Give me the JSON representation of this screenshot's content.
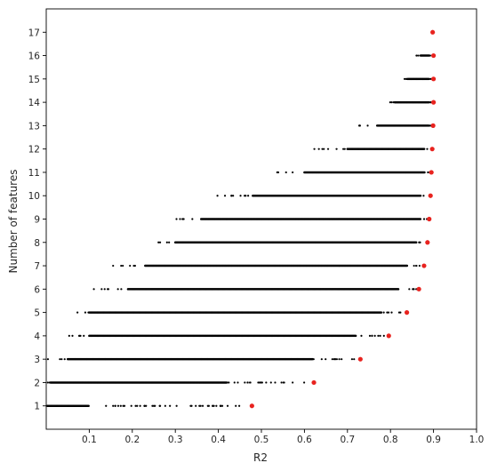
{
  "chart_data": {
    "type": "scatter",
    "title": "",
    "xlabel": "R2",
    "ylabel": "Number of features",
    "xlim": [
      0.0,
      1.0
    ],
    "ylim": [
      0.0,
      18.0
    ],
    "x_ticks": [
      0.1,
      0.2,
      0.3,
      0.4,
      0.5,
      0.6,
      0.7,
      0.8,
      0.9,
      1.0
    ],
    "y_ticks": [
      1,
      2,
      3,
      4,
      5,
      6,
      7,
      8,
      9,
      10,
      11,
      12,
      13,
      14,
      15,
      16,
      17
    ],
    "grid": false,
    "series": [
      {
        "color": "#000000",
        "marker_size": "small",
        "description_of_density": "dense horizontal bands of points at every integer feature count; band spans listed as [y, x_min, x_dense_start, x_dense_end, x_max]",
        "bands": [
          [
            1,
            0.003,
            0.003,
            0.1,
            0.45
          ],
          [
            2,
            0.003,
            0.01,
            0.42,
            0.61
          ],
          [
            3,
            0.003,
            0.05,
            0.62,
            0.72
          ],
          [
            4,
            0.035,
            0.1,
            0.72,
            0.785
          ],
          [
            5,
            0.07,
            0.1,
            0.78,
            0.83
          ],
          [
            6,
            0.11,
            0.19,
            0.82,
            0.86
          ],
          [
            7,
            0.155,
            0.23,
            0.84,
            0.87
          ],
          [
            8,
            0.255,
            0.3,
            0.86,
            0.88
          ],
          [
            9,
            0.295,
            0.36,
            0.87,
            0.885
          ],
          [
            10,
            0.385,
            0.48,
            0.87,
            0.89
          ],
          [
            11,
            0.53,
            0.6,
            0.88,
            0.89
          ],
          [
            12,
            0.615,
            0.7,
            0.88,
            0.895
          ],
          [
            13,
            0.715,
            0.77,
            0.89,
            0.895
          ],
          [
            14,
            0.795,
            0.81,
            0.89,
            0.895
          ],
          [
            15,
            0.83,
            0.84,
            0.89,
            0.895
          ],
          [
            16,
            0.86,
            0.87,
            0.89,
            0.895
          ],
          [
            17,
            0.9,
            0.9,
            0.9,
            0.9
          ]
        ]
      },
      {
        "color": "#e8231f",
        "marker_size": "large",
        "points": [
          [
            0.478,
            1
          ],
          [
            0.622,
            2
          ],
          [
            0.73,
            3
          ],
          [
            0.796,
            4
          ],
          [
            0.838,
            5
          ],
          [
            0.866,
            6
          ],
          [
            0.878,
            7
          ],
          [
            0.886,
            8
          ],
          [
            0.89,
            9
          ],
          [
            0.893,
            10
          ],
          [
            0.895,
            11
          ],
          [
            0.897,
            12
          ],
          [
            0.899,
            13
          ],
          [
            0.9,
            14
          ],
          [
            0.9,
            15
          ],
          [
            0.9,
            16
          ],
          [
            0.898,
            17
          ]
        ]
      }
    ]
  }
}
